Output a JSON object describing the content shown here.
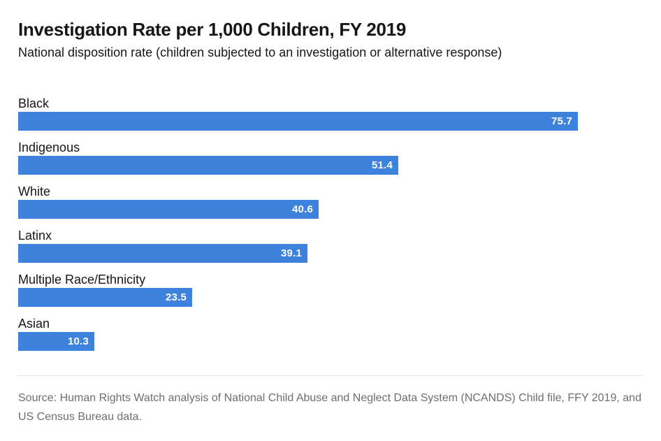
{
  "header": {
    "title": "Investigation Rate per 1,000 Children, FY 2019",
    "subtitle": "National disposition rate (children subjected to an investigation or alternative response)"
  },
  "chart_data": {
    "type": "bar",
    "orientation": "horizontal",
    "title": "Investigation Rate per 1,000 Children, FY 2019",
    "subtitle": "National disposition rate (children subjected to an investigation or alternative response)",
    "categories": [
      "Black",
      "Indigenous",
      "White",
      "Latinx",
      "Multiple Race/Ethnicity",
      "Asian"
    ],
    "values": [
      75.7,
      51.4,
      40.6,
      39.1,
      23.5,
      10.3
    ],
    "value_labels": [
      "75.7",
      "51.4",
      "40.6",
      "39.1",
      "23.5",
      "10.3"
    ],
    "xlabel": "",
    "ylabel": "",
    "xlim": [
      0,
      84.5
    ],
    "grid": false,
    "legend": false,
    "bar_color": "#3d82dd",
    "value_label_color": "#ffffff",
    "label_color": "#161616"
  },
  "footer": {
    "source": "Source: Human Rights Watch analysis of National Child Abuse and Neglect Data System (NCANDS) Child file, FFY 2019, and US Census Bureau data."
  }
}
